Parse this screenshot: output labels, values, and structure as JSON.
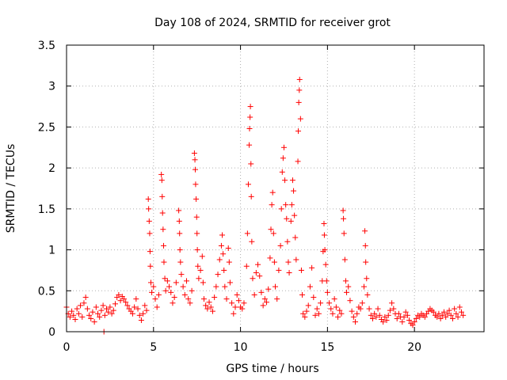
{
  "chart_data": {
    "type": "scatter",
    "title": "Day 108 of 2024, SRMTID for receiver grot",
    "xlabel": "GPS time / hours",
    "ylabel": "SRMTID / TECUs",
    "xlim": [
      0,
      24
    ],
    "ylim": [
      0,
      3.5
    ],
    "xticks": [
      0,
      5,
      10,
      15,
      20
    ],
    "xtick_labels": [
      "0",
      "5",
      "10",
      "15",
      "20"
    ],
    "yticks": [
      0,
      0.5,
      1,
      1.5,
      2,
      2.5,
      3,
      3.5
    ],
    "ytick_labels": [
      "0",
      "0.5",
      "1",
      "1.5",
      "2",
      "2.5",
      "3",
      "3.5"
    ],
    "grid": true,
    "marker": "+",
    "color": "#ff0000",
    "series": [
      {
        "name": "SRMTID",
        "points": [
          [
            0.0,
            0.3
          ],
          [
            0.1,
            0.22
          ],
          [
            0.2,
            0.18
          ],
          [
            0.3,
            0.25
          ],
          [
            0.4,
            0.2
          ],
          [
            0.5,
            0.15
          ],
          [
            0.6,
            0.28
          ],
          [
            0.7,
            0.22
          ],
          [
            0.8,
            0.32
          ],
          [
            0.9,
            0.18
          ],
          [
            1.0,
            0.35
          ],
          [
            1.1,
            0.42
          ],
          [
            1.2,
            0.28
          ],
          [
            1.3,
            0.2
          ],
          [
            1.4,
            0.16
          ],
          [
            1.5,
            0.24
          ],
          [
            1.6,
            0.12
          ],
          [
            1.7,
            0.3
          ],
          [
            1.8,
            0.22
          ],
          [
            1.9,
            0.18
          ],
          [
            2.0,
            0.26
          ],
          [
            2.1,
            0.32
          ],
          [
            2.15,
            0.0
          ],
          [
            2.2,
            0.2
          ],
          [
            2.3,
            0.28
          ],
          [
            2.4,
            0.24
          ],
          [
            2.5,
            0.3
          ],
          [
            2.6,
            0.22
          ],
          [
            2.7,
            0.26
          ],
          [
            2.8,
            0.34
          ],
          [
            2.9,
            0.42
          ],
          [
            3.0,
            0.45
          ],
          [
            3.1,
            0.38
          ],
          [
            3.2,
            0.43
          ],
          [
            3.3,
            0.4
          ],
          [
            3.4,
            0.36
          ],
          [
            3.5,
            0.32
          ],
          [
            3.6,
            0.28
          ],
          [
            3.7,
            0.25
          ],
          [
            3.8,
            0.22
          ],
          [
            3.9,
            0.3
          ],
          [
            4.0,
            0.4
          ],
          [
            4.1,
            0.28
          ],
          [
            4.2,
            0.2
          ],
          [
            4.3,
            0.14
          ],
          [
            4.4,
            0.22
          ],
          [
            4.5,
            0.32
          ],
          [
            4.6,
            0.26
          ],
          [
            4.7,
            1.62
          ],
          [
            4.72,
            1.5
          ],
          [
            4.75,
            1.35
          ],
          [
            4.78,
            1.2
          ],
          [
            4.8,
            0.98
          ],
          [
            4.82,
            0.8
          ],
          [
            4.85,
            0.6
          ],
          [
            4.9,
            0.48
          ],
          [
            5.0,
            0.55
          ],
          [
            5.1,
            0.4
          ],
          [
            5.2,
            0.3
          ],
          [
            5.3,
            0.45
          ],
          [
            5.45,
            1.92
          ],
          [
            5.48,
            1.85
          ],
          [
            5.5,
            1.65
          ],
          [
            5.52,
            1.45
          ],
          [
            5.55,
            1.25
          ],
          [
            5.58,
            1.05
          ],
          [
            5.6,
            0.85
          ],
          [
            5.65,
            0.65
          ],
          [
            5.7,
            0.5
          ],
          [
            5.8,
            0.62
          ],
          [
            5.9,
            0.55
          ],
          [
            6.0,
            0.48
          ],
          [
            6.1,
            0.35
          ],
          [
            6.2,
            0.42
          ],
          [
            6.3,
            0.6
          ],
          [
            6.45,
            1.48
          ],
          [
            6.48,
            1.35
          ],
          [
            6.5,
            1.2
          ],
          [
            6.52,
            1.0
          ],
          [
            6.55,
            0.85
          ],
          [
            6.6,
            0.7
          ],
          [
            6.7,
            0.55
          ],
          [
            6.8,
            0.45
          ],
          [
            6.9,
            0.62
          ],
          [
            7.0,
            0.4
          ],
          [
            7.1,
            0.35
          ],
          [
            7.2,
            0.5
          ],
          [
            7.35,
            2.18
          ],
          [
            7.38,
            2.1
          ],
          [
            7.4,
            1.98
          ],
          [
            7.42,
            1.8
          ],
          [
            7.45,
            1.62
          ],
          [
            7.48,
            1.4
          ],
          [
            7.5,
            1.2
          ],
          [
            7.52,
            1.0
          ],
          [
            7.55,
            0.8
          ],
          [
            7.6,
            0.65
          ],
          [
            7.7,
            0.75
          ],
          [
            7.8,
            0.92
          ],
          [
            7.85,
            0.6
          ],
          [
            7.9,
            0.4
          ],
          [
            8.0,
            0.32
          ],
          [
            8.1,
            0.28
          ],
          [
            8.2,
            0.36
          ],
          [
            8.3,
            0.3
          ],
          [
            8.4,
            0.25
          ],
          [
            8.5,
            0.42
          ],
          [
            8.6,
            0.55
          ],
          [
            8.7,
            0.7
          ],
          [
            8.8,
            0.88
          ],
          [
            8.9,
            1.05
          ],
          [
            8.95,
            1.18
          ],
          [
            9.0,
            0.95
          ],
          [
            9.05,
            0.75
          ],
          [
            9.1,
            0.55
          ],
          [
            9.2,
            0.4
          ],
          [
            9.3,
            1.02
          ],
          [
            9.35,
            0.85
          ],
          [
            9.4,
            0.6
          ],
          [
            9.5,
            0.35
          ],
          [
            9.6,
            0.22
          ],
          [
            9.7,
            0.3
          ],
          [
            9.8,
            0.45
          ],
          [
            9.9,
            0.38
          ],
          [
            10.0,
            0.3
          ],
          [
            10.1,
            0.28
          ],
          [
            10.2,
            0.35
          ],
          [
            10.35,
            0.8
          ],
          [
            10.4,
            1.2
          ],
          [
            10.45,
            1.8
          ],
          [
            10.5,
            2.28
          ],
          [
            10.52,
            2.48
          ],
          [
            10.55,
            2.62
          ],
          [
            10.57,
            2.75
          ],
          [
            10.6,
            2.05
          ],
          [
            10.62,
            1.65
          ],
          [
            10.65,
            1.1
          ],
          [
            10.7,
            0.65
          ],
          [
            10.8,
            0.45
          ],
          [
            10.9,
            0.72
          ],
          [
            11.0,
            0.82
          ],
          [
            11.1,
            0.68
          ],
          [
            11.2,
            0.48
          ],
          [
            11.3,
            0.32
          ],
          [
            11.4,
            0.4
          ],
          [
            11.5,
            0.36
          ],
          [
            11.6,
            0.52
          ],
          [
            11.7,
            0.9
          ],
          [
            11.75,
            1.25
          ],
          [
            11.8,
            1.55
          ],
          [
            11.85,
            1.7
          ],
          [
            11.9,
            1.2
          ],
          [
            11.95,
            0.85
          ],
          [
            12.0,
            0.55
          ],
          [
            12.1,
            0.4
          ],
          [
            12.2,
            0.75
          ],
          [
            12.3,
            1.05
          ],
          [
            12.35,
            1.5
          ],
          [
            12.4,
            1.95
          ],
          [
            12.45,
            2.12
          ],
          [
            12.5,
            2.25
          ],
          [
            12.55,
            1.85
          ],
          [
            12.6,
            1.55
          ],
          [
            12.65,
            1.38
          ],
          [
            12.7,
            1.1
          ],
          [
            12.75,
            0.85
          ],
          [
            12.8,
            0.72
          ],
          [
            12.9,
            1.35
          ],
          [
            12.95,
            1.55
          ],
          [
            13.0,
            1.85
          ],
          [
            13.05,
            1.72
          ],
          [
            13.1,
            1.42
          ],
          [
            13.15,
            1.15
          ],
          [
            13.2,
            0.88
          ],
          [
            13.3,
            2.08
          ],
          [
            13.32,
            2.45
          ],
          [
            13.35,
            2.8
          ],
          [
            13.38,
            2.95
          ],
          [
            13.4,
            3.08
          ],
          [
            13.45,
            2.6
          ],
          [
            13.5,
            0.75
          ],
          [
            13.55,
            0.45
          ],
          [
            13.6,
            0.22
          ],
          [
            13.7,
            0.18
          ],
          [
            13.8,
            0.25
          ],
          [
            13.9,
            0.32
          ],
          [
            14.0,
            0.55
          ],
          [
            14.1,
            0.78
          ],
          [
            14.2,
            0.42
          ],
          [
            14.3,
            0.2
          ],
          [
            14.4,
            0.28
          ],
          [
            14.5,
            0.22
          ],
          [
            14.6,
            0.35
          ],
          [
            14.7,
            0.62
          ],
          [
            14.75,
            0.98
          ],
          [
            14.8,
            1.32
          ],
          [
            14.82,
            1.18
          ],
          [
            14.85,
            1.0
          ],
          [
            14.9,
            0.82
          ],
          [
            14.95,
            0.62
          ],
          [
            15.0,
            0.48
          ],
          [
            15.1,
            0.35
          ],
          [
            15.2,
            0.28
          ],
          [
            15.3,
            0.22
          ],
          [
            15.4,
            0.4
          ],
          [
            15.5,
            0.3
          ],
          [
            15.6,
            0.18
          ],
          [
            15.7,
            0.26
          ],
          [
            15.8,
            0.22
          ],
          [
            15.9,
            1.48
          ],
          [
            15.92,
            1.38
          ],
          [
            15.95,
            1.2
          ],
          [
            16.0,
            0.88
          ],
          [
            16.05,
            0.62
          ],
          [
            16.1,
            0.48
          ],
          [
            16.2,
            0.55
          ],
          [
            16.3,
            0.38
          ],
          [
            16.4,
            0.25
          ],
          [
            16.5,
            0.18
          ],
          [
            16.6,
            0.12
          ],
          [
            16.7,
            0.22
          ],
          [
            16.8,
            0.3
          ],
          [
            16.9,
            0.28
          ],
          [
            17.0,
            0.35
          ],
          [
            17.1,
            0.55
          ],
          [
            17.15,
            1.23
          ],
          [
            17.18,
            1.05
          ],
          [
            17.2,
            0.85
          ],
          [
            17.25,
            0.65
          ],
          [
            17.3,
            0.45
          ],
          [
            17.4,
            0.28
          ],
          [
            17.5,
            0.2
          ],
          [
            17.6,
            0.16
          ],
          [
            17.7,
            0.22
          ],
          [
            17.8,
            0.18
          ],
          [
            17.9,
            0.28
          ],
          [
            18.0,
            0.2
          ],
          [
            18.1,
            0.15
          ],
          [
            18.2,
            0.12
          ],
          [
            18.3,
            0.18
          ],
          [
            18.4,
            0.14
          ],
          [
            18.5,
            0.2
          ],
          [
            18.6,
            0.26
          ],
          [
            18.7,
            0.35
          ],
          [
            18.8,
            0.28
          ],
          [
            18.9,
            0.22
          ],
          [
            19.0,
            0.16
          ],
          [
            19.1,
            0.22
          ],
          [
            19.2,
            0.18
          ],
          [
            19.3,
            0.12
          ],
          [
            19.4,
            0.18
          ],
          [
            19.5,
            0.24
          ],
          [
            19.6,
            0.2
          ],
          [
            19.7,
            0.14
          ],
          [
            19.8,
            0.1
          ],
          [
            19.9,
            0.08
          ],
          [
            20.0,
            0.12
          ],
          [
            20.1,
            0.16
          ],
          [
            20.2,
            0.2
          ],
          [
            20.3,
            0.18
          ],
          [
            20.4,
            0.22
          ],
          [
            20.5,
            0.2
          ],
          [
            20.6,
            0.18
          ],
          [
            20.7,
            0.22
          ],
          [
            20.8,
            0.25
          ],
          [
            20.9,
            0.28
          ],
          [
            21.0,
            0.26
          ],
          [
            21.1,
            0.24
          ],
          [
            21.2,
            0.2
          ],
          [
            21.3,
            0.18
          ],
          [
            21.4,
            0.22
          ],
          [
            21.5,
            0.16
          ],
          [
            21.6,
            0.2
          ],
          [
            21.7,
            0.24
          ],
          [
            21.8,
            0.18
          ],
          [
            21.9,
            0.22
          ],
          [
            22.0,
            0.26
          ],
          [
            22.1,
            0.2
          ],
          [
            22.2,
            0.16
          ],
          [
            22.3,
            0.28
          ],
          [
            22.4,
            0.22
          ],
          [
            22.5,
            0.18
          ],
          [
            22.6,
            0.3
          ],
          [
            22.7,
            0.24
          ],
          [
            22.8,
            0.2
          ]
        ]
      }
    ]
  }
}
